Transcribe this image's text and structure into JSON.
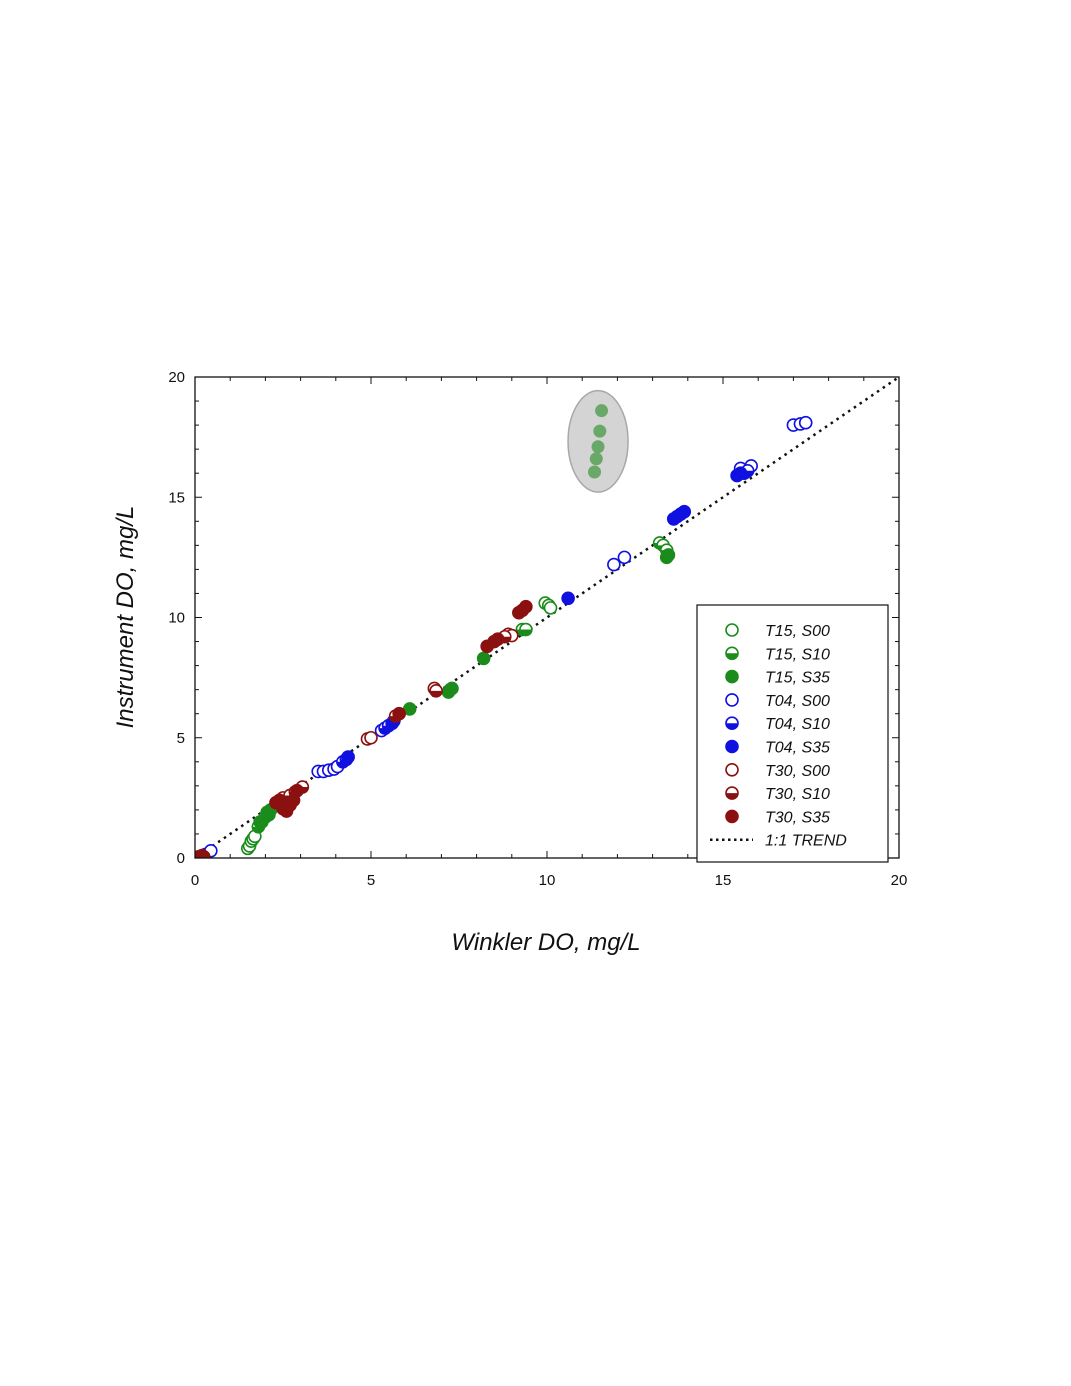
{
  "colors": {
    "green": "#1b8c1b",
    "blue": "#1010e0",
    "red": "#8b1111",
    "highlight_fill": "#d4d4d4",
    "highlight_stroke": "#a8a8a8",
    "highlight_points": "#6aa86a"
  },
  "chart_data": {
    "type": "scatter",
    "title": "",
    "xlabel": "Winkler DO, mg/L",
    "ylabel": "Instrument DO, mg/L",
    "xlim": [
      0,
      20
    ],
    "ylim": [
      0,
      20
    ],
    "xticks": [
      0,
      5,
      10,
      15,
      20
    ],
    "yticks": [
      0,
      5,
      10,
      15,
      20
    ],
    "grid": false,
    "legend_position": "bottom-right",
    "trend": {
      "name": "1:1 TREND",
      "style": "dotted",
      "slope": 1,
      "intercept": 0
    },
    "series": [
      {
        "name": "T15, S00",
        "color": "green",
        "marker": "open",
        "points": [
          [
            1.5,
            0.4
          ],
          [
            1.55,
            0.5
          ],
          [
            1.6,
            0.7
          ],
          [
            1.65,
            0.8
          ],
          [
            1.7,
            0.9
          ],
          [
            9.95,
            10.6
          ],
          [
            10.05,
            10.5
          ],
          [
            10.1,
            10.4
          ]
        ]
      },
      {
        "name": "T15, S10",
        "color": "green",
        "marker": "half",
        "points": [
          [
            1.8,
            1.3
          ],
          [
            1.9,
            1.5
          ],
          [
            2.0,
            1.7
          ],
          [
            2.1,
            1.8
          ],
          [
            9.3,
            9.5
          ],
          [
            9.4,
            9.5
          ],
          [
            13.2,
            13.1
          ],
          [
            13.3,
            13.0
          ],
          [
            13.4,
            12.8
          ]
        ]
      },
      {
        "name": "T15, S35",
        "color": "green",
        "marker": "filled",
        "points": [
          [
            1.85,
            1.5
          ],
          [
            2.05,
            1.9
          ],
          [
            2.15,
            2.0
          ],
          [
            6.1,
            6.2
          ],
          [
            7.2,
            6.9
          ],
          [
            7.25,
            7.0
          ],
          [
            7.3,
            7.05
          ],
          [
            8.2,
            8.3
          ],
          [
            13.4,
            12.5
          ],
          [
            13.45,
            12.6
          ]
        ]
      },
      {
        "name": "T04, S00",
        "color": "blue",
        "marker": "open",
        "points": [
          [
            0.3,
            0.15
          ],
          [
            0.45,
            0.3
          ],
          [
            3.5,
            3.6
          ],
          [
            3.65,
            3.6
          ],
          [
            3.8,
            3.65
          ],
          [
            3.95,
            3.7
          ],
          [
            4.05,
            3.8
          ],
          [
            5.3,
            5.3
          ],
          [
            11.9,
            12.2
          ],
          [
            12.2,
            12.5
          ],
          [
            15.5,
            16.2
          ],
          [
            15.8,
            16.3
          ],
          [
            17.0,
            18.0
          ],
          [
            17.2,
            18.05
          ],
          [
            17.35,
            18.1
          ]
        ]
      },
      {
        "name": "T04, S10",
        "color": "blue",
        "marker": "half",
        "points": [
          [
            4.2,
            4.0
          ],
          [
            4.3,
            4.1
          ],
          [
            5.4,
            5.4
          ],
          [
            5.5,
            5.5
          ],
          [
            15.6,
            16.0
          ],
          [
            15.7,
            16.1
          ]
        ]
      },
      {
        "name": "T04, S35",
        "color": "blue",
        "marker": "filled",
        "points": [
          [
            4.35,
            4.2
          ],
          [
            5.6,
            5.6
          ],
          [
            5.65,
            5.7
          ],
          [
            10.6,
            10.8
          ],
          [
            13.6,
            14.1
          ],
          [
            13.7,
            14.2
          ],
          [
            13.8,
            14.3
          ],
          [
            13.9,
            14.4
          ],
          [
            15.4,
            15.9
          ],
          [
            15.5,
            16.0
          ]
        ]
      },
      {
        "name": "T30, S00",
        "color": "red",
        "marker": "open",
        "points": [
          [
            4.9,
            4.95
          ],
          [
            5.0,
            5.0
          ],
          [
            6.8,
            7.05
          ],
          [
            8.9,
            9.3
          ],
          [
            9.0,
            9.25
          ]
        ]
      },
      {
        "name": "T30, S10",
        "color": "red",
        "marker": "half",
        "points": [
          [
            2.5,
            2.5
          ],
          [
            2.7,
            2.6
          ],
          [
            2.85,
            2.75
          ],
          [
            3.05,
            2.95
          ],
          [
            5.7,
            5.9
          ],
          [
            6.85,
            6.95
          ],
          [
            8.8,
            9.2
          ]
        ]
      },
      {
        "name": "T30, S35",
        "color": "red",
        "marker": "filled",
        "points": [
          [
            0.1,
            0.05
          ],
          [
            0.2,
            0.1
          ],
          [
            0.25,
            0.05
          ],
          [
            2.3,
            2.3
          ],
          [
            2.4,
            2.4
          ],
          [
            2.5,
            2.05
          ],
          [
            2.6,
            1.95
          ],
          [
            2.7,
            2.2
          ],
          [
            2.8,
            2.4
          ],
          [
            2.9,
            2.8
          ],
          [
            5.8,
            6.0
          ],
          [
            8.3,
            8.8
          ],
          [
            8.5,
            9.0
          ],
          [
            8.6,
            9.1
          ],
          [
            9.2,
            10.2
          ],
          [
            9.3,
            10.3
          ],
          [
            9.4,
            10.45
          ]
        ]
      }
    ],
    "highlighted_outliers": {
      "series": "T15, S35",
      "points": [
        [
          11.55,
          18.6
        ],
        [
          11.5,
          17.75
        ],
        [
          11.45,
          17.1
        ],
        [
          11.4,
          16.6
        ],
        [
          11.35,
          16.05
        ]
      ]
    }
  }
}
